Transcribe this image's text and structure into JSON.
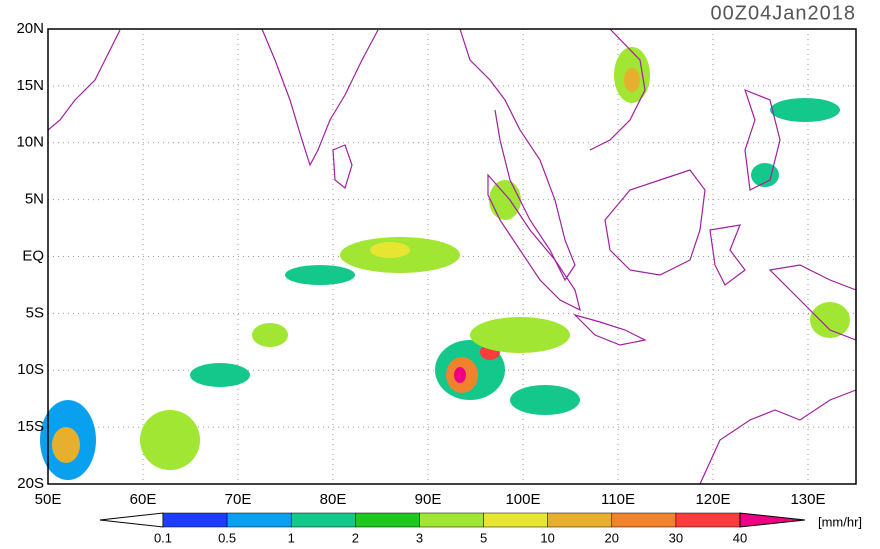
{
  "title": "00Z04Jan2018",
  "lat_labels": [
    "20N",
    "15N",
    "10N",
    "5N",
    "EQ",
    "5S",
    "10S",
    "15S",
    "20S"
  ],
  "lon_labels": [
    "50E",
    "60E",
    "70E",
    "80E",
    "90E",
    "100E",
    "110E",
    "120E",
    "130E"
  ],
  "colorbar": {
    "labels": [
      "0.1",
      "0.5",
      "1",
      "2",
      "3",
      "5",
      "10",
      "20",
      "30",
      "40"
    ],
    "colors": [
      "#1e3cff",
      "#0aa0f0",
      "#14c88c",
      "#1ec81e",
      "#a0e632",
      "#e6e632",
      "#e6af2d",
      "#f0822d",
      "#fa3c3c"
    ],
    "under_color": "#ffffff",
    "over_color": "#f00082",
    "unit": "[mm/hr]"
  }
}
